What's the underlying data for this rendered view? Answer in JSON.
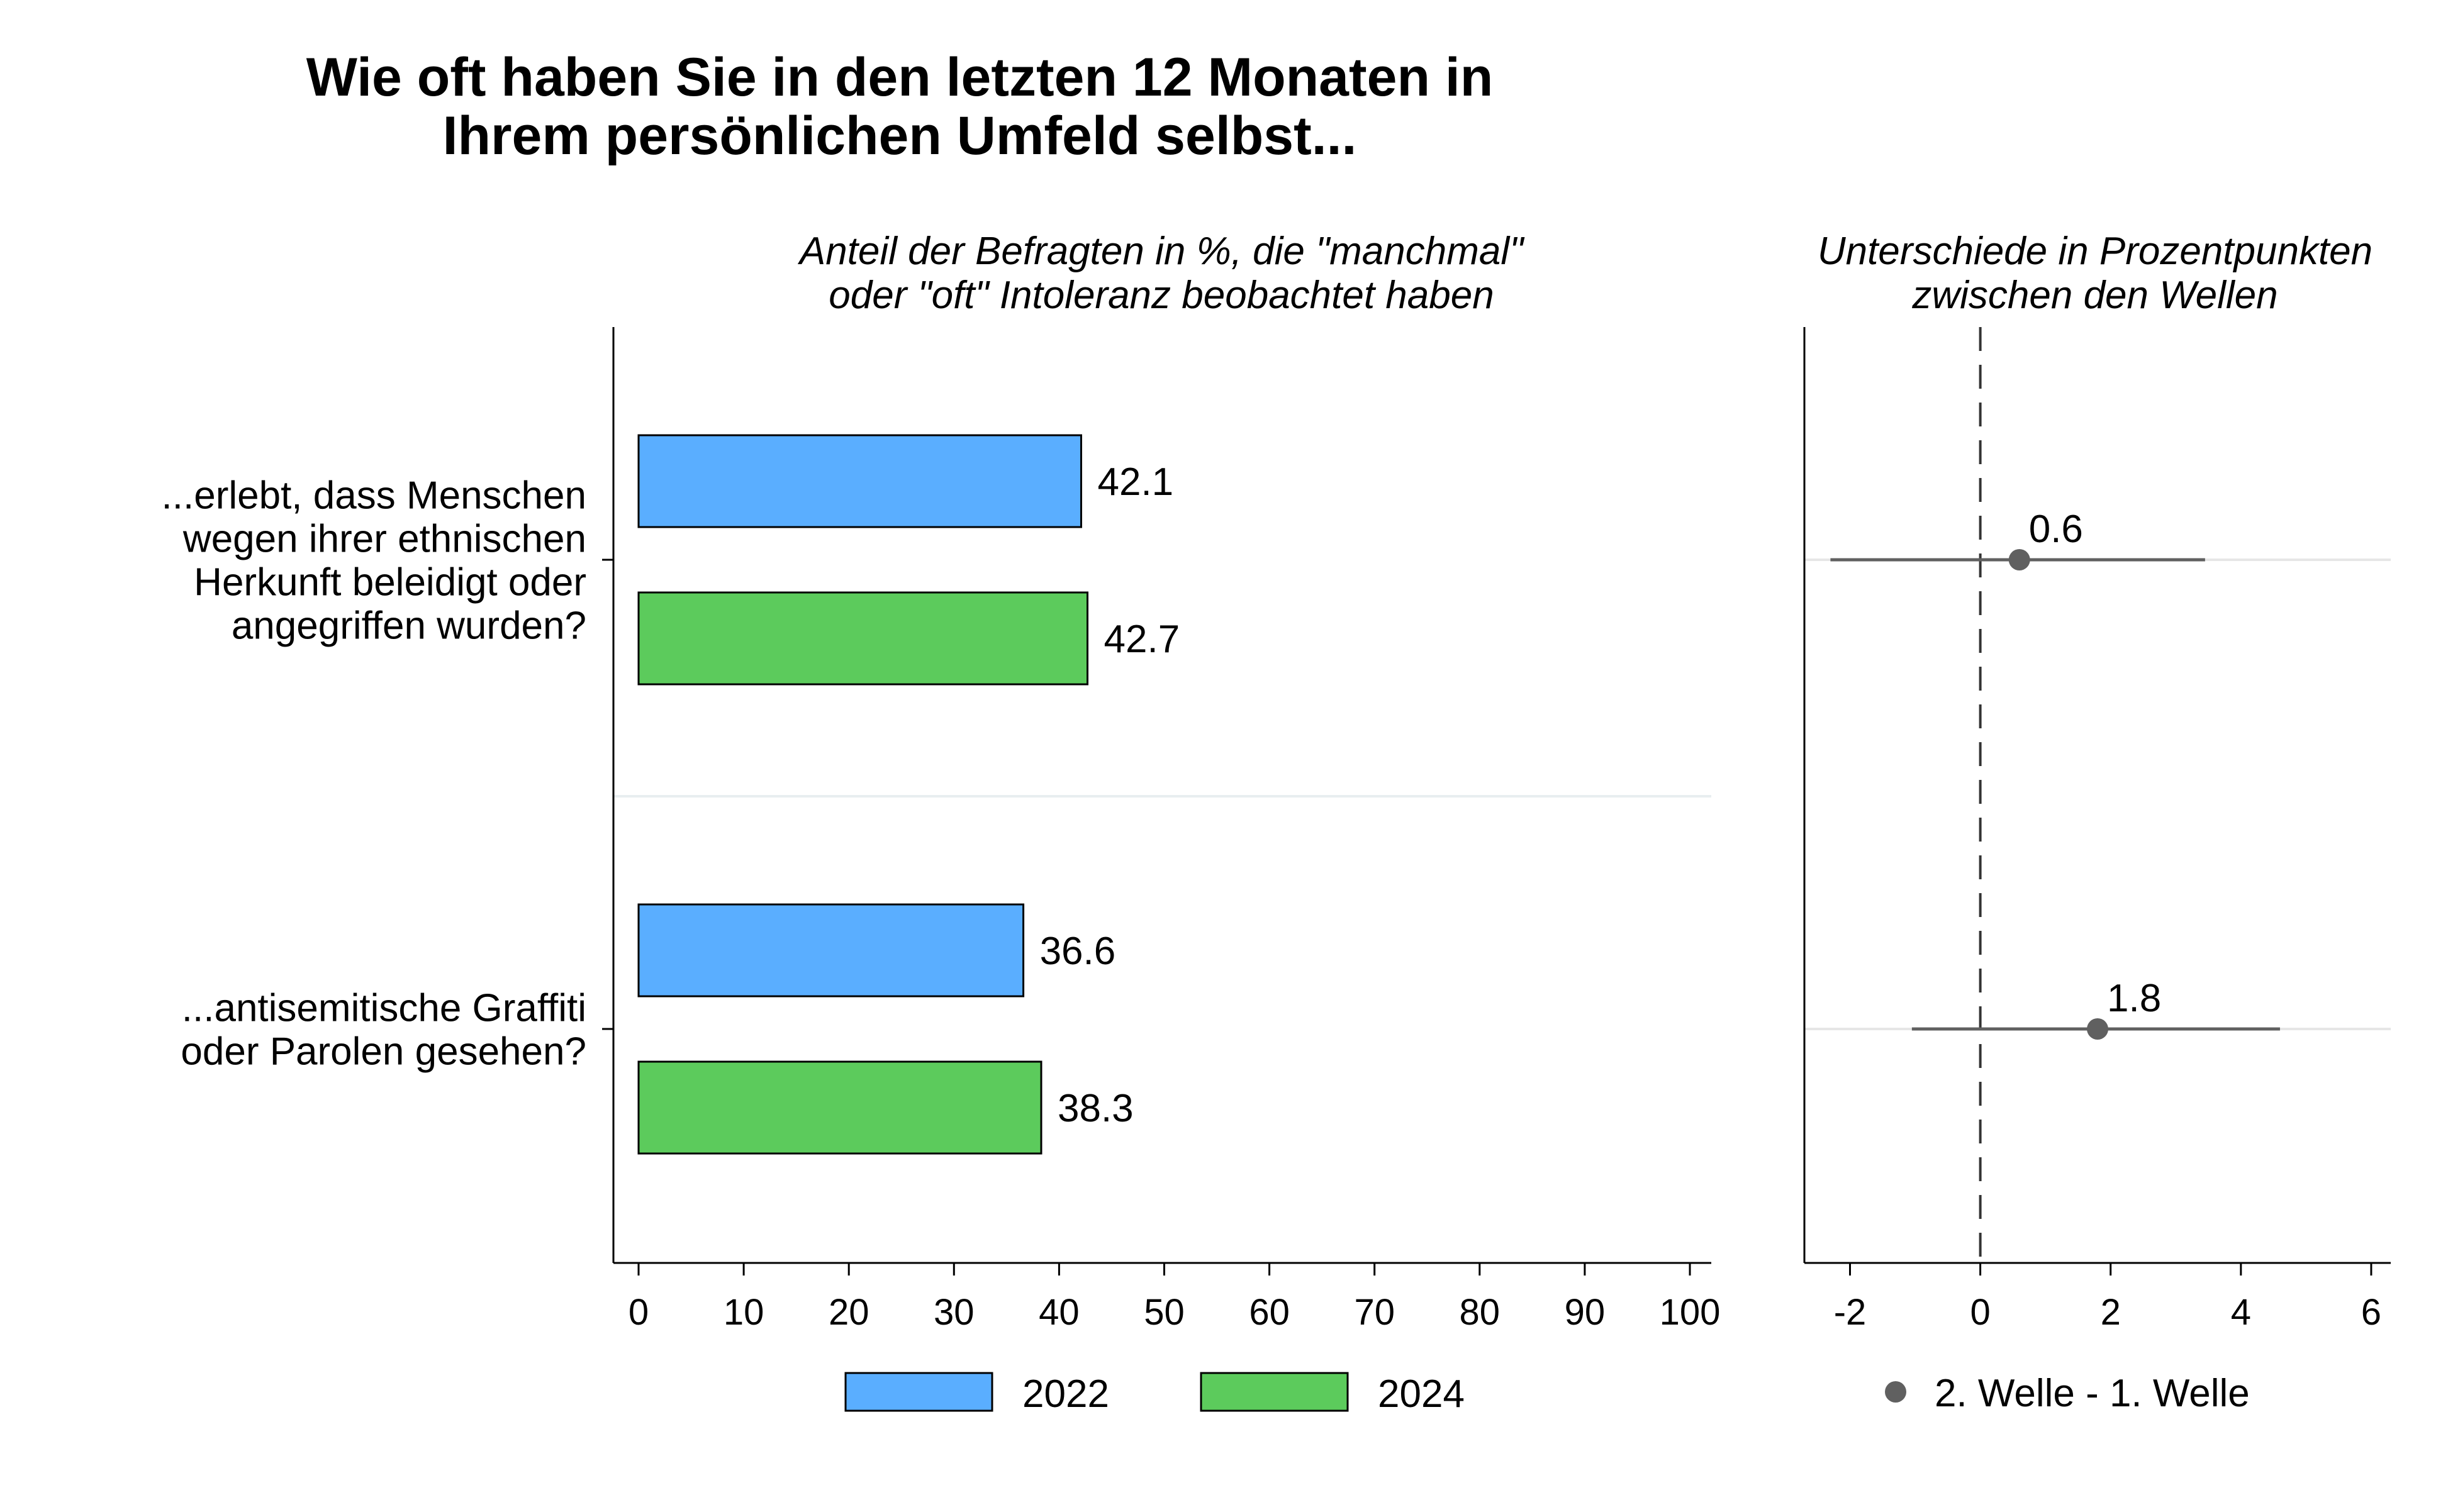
{
  "title": {
    "line1": "Wie oft haben Sie in den letzten 12 Monaten in",
    "line2": "Ihrem persönlichen Umfeld selbst..."
  },
  "chart_data": [
    {
      "type": "bar",
      "orientation": "horizontal",
      "title_lines": [
        "Anteil der Befragten in %, die \"manchmal\"",
        "oder \"oft\" Intoleranz beobachtet haben"
      ],
      "categories": [
        [
          "...erlebt, dass Menschen",
          "wegen ihrer ethnischen",
          "Herkunft beleidigt oder",
          "angegriffen wurden?"
        ],
        [
          "...antisemitische Graffiti",
          "oder Parolen gesehen?"
        ]
      ],
      "series": [
        {
          "name": "2022",
          "color": "#5aaeff",
          "values": [
            42.1,
            36.6
          ]
        },
        {
          "name": "2024",
          "color": "#5ccb5c",
          "values": [
            42.7,
            38.3
          ]
        }
      ],
      "value_labels": [
        [
          "42.1",
          "36.6"
        ],
        [
          "42.7",
          "38.3"
        ]
      ],
      "xlim": [
        0,
        100
      ],
      "xticks": [
        0,
        10,
        20,
        30,
        40,
        50,
        60,
        70,
        80,
        90,
        100
      ],
      "legend_placement": "bottom",
      "grid": false
    },
    {
      "type": "scatter",
      "subtype": "dot-with-interval",
      "title_lines": [
        "Unterschiede in Prozentpunkten",
        "zwischen den Wellen"
      ],
      "points": [
        {
          "category_index": 0,
          "value": 0.6,
          "label": "0.6",
          "ci": [
            -2.3,
            3.45
          ]
        },
        {
          "category_index": 1,
          "value": 1.8,
          "label": "1.8",
          "ci": [
            -1.05,
            4.6
          ]
        }
      ],
      "color": "#606060",
      "reference_line": 0,
      "xlim": [
        -2.7,
        6.3
      ],
      "xticks": [
        -2,
        0,
        2,
        4,
        6
      ],
      "legend": "2. Welle - 1. Welle",
      "legend_placement": "bottom",
      "grid": false
    }
  ]
}
